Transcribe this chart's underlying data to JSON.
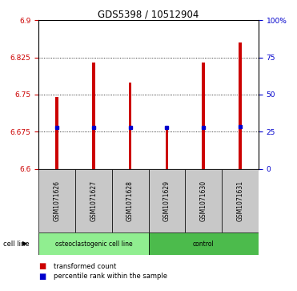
{
  "title": "GDS5398 / 10512904",
  "samples": [
    "GSM1071626",
    "GSM1071627",
    "GSM1071628",
    "GSM1071629",
    "GSM1071630",
    "GSM1071631"
  ],
  "bar_bottoms": [
    6.6,
    6.6,
    6.6,
    6.6,
    6.6,
    6.6
  ],
  "bar_tops": [
    6.745,
    6.815,
    6.775,
    6.685,
    6.815,
    6.855
  ],
  "percentile_values": [
    6.683,
    6.683,
    6.683,
    6.683,
    6.683,
    6.685
  ],
  "ylim_left": [
    6.6,
    6.9
  ],
  "yticks_left": [
    6.6,
    6.675,
    6.75,
    6.825,
    6.9
  ],
  "ylim_right": [
    0,
    100
  ],
  "yticks_right": [
    0,
    25,
    50,
    75,
    100
  ],
  "ytick_labels_right": [
    "0",
    "25",
    "50",
    "75",
    "100%"
  ],
  "groups": [
    {
      "label": "osteoclastogenic cell line",
      "start": 0,
      "end": 3,
      "color": "#90ee90"
    },
    {
      "label": "control",
      "start": 3,
      "end": 6,
      "color": "#4cbb4c"
    }
  ],
  "cell_line_label": "cell line",
  "bar_color": "#cc0000",
  "percentile_color": "#0000cc",
  "label_area_color": "#c8c8c8",
  "legend_items": [
    {
      "label": "transformed count",
      "color": "#cc0000"
    },
    {
      "label": "percentile rank within the sample",
      "color": "#0000cc"
    }
  ],
  "bar_width": 0.08,
  "dotted_lines": [
    6.825,
    6.75,
    6.675
  ]
}
